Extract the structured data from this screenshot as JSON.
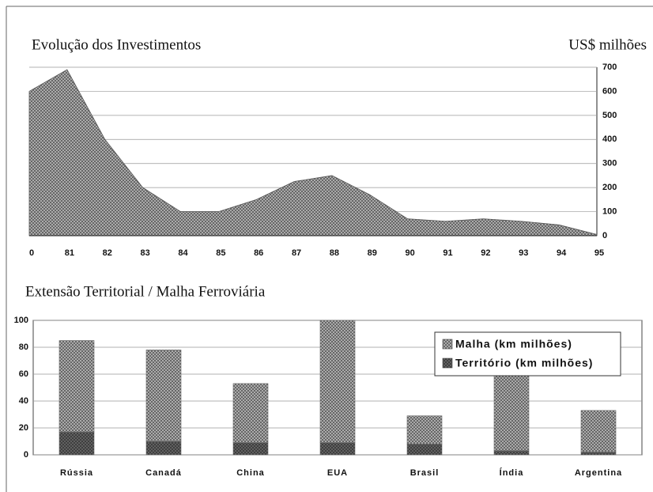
{
  "chart_data": [
    {
      "type": "area",
      "title": "Evolução dos Investimentos",
      "y_axis_label": "US$ milhões",
      "categories": [
        "0",
        "81",
        "82",
        "83",
        "84",
        "85",
        "86",
        "87",
        "88",
        "89",
        "90",
        "91",
        "92",
        "93",
        "94",
        "95"
      ],
      "values": [
        600,
        690,
        400,
        200,
        100,
        100,
        150,
        225,
        250,
        170,
        70,
        60,
        70,
        60,
        45,
        5
      ],
      "color": "#8c8c8c",
      "ylim": [
        0,
        700
      ],
      "yticks": [
        0,
        100,
        200,
        300,
        400,
        500,
        600,
        700
      ],
      "grid": true,
      "y_axis_side": "right"
    },
    {
      "type": "stacked_bar",
      "title": "Extensão Territorial / Malha Ferroviária",
      "categories": [
        "Rússia",
        "Canadá",
        "China",
        "EUA",
        "Brasil",
        "Índia",
        "Argentina"
      ],
      "series": [
        {
          "name": "Território (km milhões)",
          "color": "#4a4a4a",
          "values": [
            17,
            10,
            9,
            9,
            8,
            3,
            2
          ]
        },
        {
          "name": "Malha (km milhões)",
          "color": "#9a9a9a",
          "values": [
            68,
            68,
            44,
            91,
            21,
            57,
            31
          ]
        }
      ],
      "ylim": [
        0,
        100
      ],
      "yticks": [
        0,
        20,
        40,
        60,
        80,
        100
      ],
      "grid": true,
      "legend": "top-right"
    }
  ]
}
